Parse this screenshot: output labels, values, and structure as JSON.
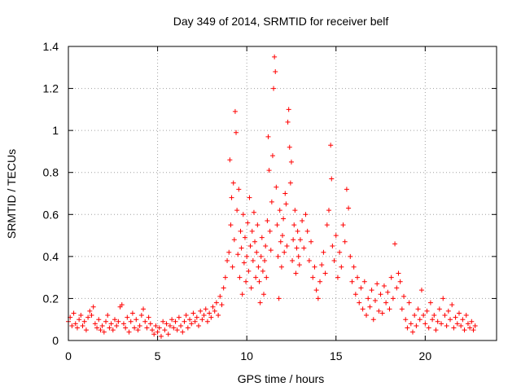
{
  "chart_data": {
    "type": "scatter",
    "title": "Day 349 of 2014, SRMTID for receiver belf",
    "xlabel": "GPS time / hours",
    "ylabel": "SRMTID / TECUs",
    "xlim": [
      0,
      24
    ],
    "ylim": [
      0,
      1.4
    ],
    "grid": true,
    "marker": "+",
    "color": "#ff0000",
    "xticks": [
      0,
      5,
      10,
      15,
      20
    ],
    "xtick_labels": [
      "0",
      "5",
      "10",
      "15",
      "20"
    ],
    "yticks": [
      0,
      0.2,
      0.4,
      0.6,
      0.8,
      1,
      1.2,
      1.4
    ],
    "ytick_labels": [
      "0",
      "0.2",
      "0.4",
      "0.6",
      "0.8",
      "1",
      "1.2",
      "1.4"
    ],
    "series": [
      {
        "name": "SRMTID",
        "points": [
          [
            0.0,
            0.09
          ],
          [
            0.1,
            0.11
          ],
          [
            0.2,
            0.07
          ],
          [
            0.3,
            0.13
          ],
          [
            0.4,
            0.08
          ],
          [
            0.5,
            0.06
          ],
          [
            0.6,
            0.1
          ],
          [
            0.7,
            0.12
          ],
          [
            0.8,
            0.07
          ],
          [
            0.9,
            0.09
          ],
          [
            1.0,
            0.05
          ],
          [
            1.1,
            0.11
          ],
          [
            1.2,
            0.14
          ],
          [
            1.3,
            0.12
          ],
          [
            1.4,
            0.16
          ],
          [
            1.5,
            0.08
          ],
          [
            1.6,
            0.06
          ],
          [
            1.7,
            0.1
          ],
          [
            1.8,
            0.05
          ],
          [
            1.9,
            0.07
          ],
          [
            2.0,
            0.04
          ],
          [
            2.1,
            0.09
          ],
          [
            2.2,
            0.12
          ],
          [
            2.3,
            0.06
          ],
          [
            2.4,
            0.08
          ],
          [
            2.5,
            0.05
          ],
          [
            2.6,
            0.1
          ],
          [
            2.7,
            0.07
          ],
          [
            2.8,
            0.09
          ],
          [
            2.9,
            0.16
          ],
          [
            3.0,
            0.17
          ],
          [
            3.1,
            0.08
          ],
          [
            3.2,
            0.06
          ],
          [
            3.3,
            0.11
          ],
          [
            3.4,
            0.04
          ],
          [
            3.5,
            0.09
          ],
          [
            3.6,
            0.13
          ],
          [
            3.7,
            0.06
          ],
          [
            3.8,
            0.1
          ],
          [
            3.9,
            0.05
          ],
          [
            4.0,
            0.07
          ],
          [
            4.1,
            0.12
          ],
          [
            4.2,
            0.15
          ],
          [
            4.3,
            0.09
          ],
          [
            4.4,
            0.06
          ],
          [
            4.5,
            0.11
          ],
          [
            4.6,
            0.08
          ],
          [
            4.7,
            0.05
          ],
          [
            4.8,
            0.03
          ],
          [
            4.9,
            0.07
          ],
          [
            5.0,
            0.04
          ],
          [
            5.1,
            0.06
          ],
          [
            5.2,
            0.02
          ],
          [
            5.3,
            0.09
          ],
          [
            5.4,
            0.05
          ],
          [
            5.5,
            0.08
          ],
          [
            5.6,
            0.03
          ],
          [
            5.7,
            0.07
          ],
          [
            5.8,
            0.1
          ],
          [
            5.9,
            0.06
          ],
          [
            6.0,
            0.09
          ],
          [
            6.1,
            0.05
          ],
          [
            6.2,
            0.11
          ],
          [
            6.3,
            0.07
          ],
          [
            6.4,
            0.04
          ],
          [
            6.5,
            0.09
          ],
          [
            6.6,
            0.12
          ],
          [
            6.7,
            0.06
          ],
          [
            6.8,
            0.1
          ],
          [
            6.9,
            0.08
          ],
          [
            7.0,
            0.13
          ],
          [
            7.1,
            0.09
          ],
          [
            7.2,
            0.11
          ],
          [
            7.3,
            0.07
          ],
          [
            7.4,
            0.14
          ],
          [
            7.5,
            0.1
          ],
          [
            7.6,
            0.12
          ],
          [
            7.7,
            0.15
          ],
          [
            7.8,
            0.09
          ],
          [
            7.9,
            0.13
          ],
          [
            8.0,
            0.11
          ],
          [
            8.1,
            0.16
          ],
          [
            8.2,
            0.14
          ],
          [
            8.3,
            0.18
          ],
          [
            8.4,
            0.12
          ],
          [
            8.5,
            0.21
          ],
          [
            8.6,
            0.17
          ],
          [
            8.7,
            0.25
          ],
          [
            8.8,
            0.3
          ],
          [
            8.9,
            0.38
          ],
          [
            9.0,
            0.42
          ],
          [
            9.05,
            0.86
          ],
          [
            9.1,
            0.55
          ],
          [
            9.15,
            0.68
          ],
          [
            9.2,
            0.35
          ],
          [
            9.25,
            0.75
          ],
          [
            9.3,
            0.48
          ],
          [
            9.35,
            1.09
          ],
          [
            9.4,
            0.99
          ],
          [
            9.45,
            0.62
          ],
          [
            9.5,
            0.41
          ],
          [
            9.55,
            0.72
          ],
          [
            9.6,
            0.3
          ],
          [
            9.65,
            0.52
          ],
          [
            9.7,
            0.44
          ],
          [
            9.75,
            0.22
          ],
          [
            9.8,
            0.6
          ],
          [
            9.85,
            0.37
          ],
          [
            9.9,
            0.49
          ],
          [
            9.95,
            0.28
          ],
          [
            10.0,
            0.4
          ],
          [
            10.05,
            0.56
          ],
          [
            10.1,
            0.33
          ],
          [
            10.15,
            0.68
          ],
          [
            10.2,
            0.45
          ],
          [
            10.25,
            0.25
          ],
          [
            10.3,
            0.52
          ],
          [
            10.35,
            0.38
          ],
          [
            10.4,
            0.61
          ],
          [
            10.45,
            0.47
          ],
          [
            10.5,
            0.3
          ],
          [
            10.55,
            0.42
          ],
          [
            10.6,
            0.55
          ],
          [
            10.65,
            0.35
          ],
          [
            10.7,
            0.28
          ],
          [
            10.75,
            0.18
          ],
          [
            10.8,
            0.4
          ],
          [
            10.85,
            0.49
          ],
          [
            10.9,
            0.33
          ],
          [
            10.95,
            0.22
          ],
          [
            11.0,
            0.38
          ],
          [
            11.05,
            0.45
          ],
          [
            11.1,
            0.3
          ],
          [
            11.15,
            0.57
          ],
          [
            11.2,
            0.97
          ],
          [
            11.25,
            0.81
          ],
          [
            11.3,
            0.52
          ],
          [
            11.35,
            0.43
          ],
          [
            11.4,
            0.66
          ],
          [
            11.45,
            0.88
          ],
          [
            11.5,
            1.2
          ],
          [
            11.55,
            1.35
          ],
          [
            11.6,
            1.28
          ],
          [
            11.65,
            0.73
          ],
          [
            11.7,
            0.55
          ],
          [
            11.75,
            0.4
          ],
          [
            11.8,
            0.2
          ],
          [
            11.85,
            0.62
          ],
          [
            11.9,
            0.47
          ],
          [
            11.95,
            0.35
          ],
          [
            12.0,
            0.5
          ],
          [
            12.05,
            0.58
          ],
          [
            12.1,
            0.42
          ],
          [
            12.15,
            0.7
          ],
          [
            12.2,
            0.65
          ],
          [
            12.25,
            0.45
          ],
          [
            12.3,
            1.04
          ],
          [
            12.35,
            1.1
          ],
          [
            12.4,
            0.92
          ],
          [
            12.45,
            0.75
          ],
          [
            12.5,
            0.85
          ],
          [
            12.55,
            0.38
          ],
          [
            12.6,
            0.48
          ],
          [
            12.65,
            0.55
          ],
          [
            12.7,
            0.62
          ],
          [
            12.75,
            0.32
          ],
          [
            12.8,
            0.44
          ],
          [
            12.85,
            0.52
          ],
          [
            12.9,
            0.4
          ],
          [
            12.95,
            0.36
          ],
          [
            13.0,
            0.48
          ],
          [
            13.1,
            0.57
          ],
          [
            13.2,
            0.44
          ],
          [
            13.3,
            0.6
          ],
          [
            13.4,
            0.52
          ],
          [
            13.5,
            0.38
          ],
          [
            13.6,
            0.47
          ],
          [
            13.7,
            0.3
          ],
          [
            13.8,
            0.35
          ],
          [
            13.9,
            0.24
          ],
          [
            14.0,
            0.2
          ],
          [
            14.1,
            0.28
          ],
          [
            14.2,
            0.36
          ],
          [
            14.3,
            0.42
          ],
          [
            14.4,
            0.32
          ],
          [
            14.5,
            0.55
          ],
          [
            14.6,
            0.62
          ],
          [
            14.7,
            0.93
          ],
          [
            14.75,
            0.77
          ],
          [
            14.8,
            0.45
          ],
          [
            14.9,
            0.38
          ],
          [
            15.0,
            0.5
          ],
          [
            15.1,
            0.3
          ],
          [
            15.2,
            0.42
          ],
          [
            15.3,
            0.35
          ],
          [
            15.4,
            0.55
          ],
          [
            15.5,
            0.47
          ],
          [
            15.6,
            0.72
          ],
          [
            15.7,
            0.63
          ],
          [
            15.8,
            0.4
          ],
          [
            15.9,
            0.28
          ],
          [
            16.0,
            0.35
          ],
          [
            16.1,
            0.22
          ],
          [
            16.2,
            0.3
          ],
          [
            16.3,
            0.18
          ],
          [
            16.4,
            0.25
          ],
          [
            16.5,
            0.15
          ],
          [
            16.6,
            0.28
          ],
          [
            16.7,
            0.12
          ],
          [
            16.8,
            0.2
          ],
          [
            16.9,
            0.16
          ],
          [
            17.0,
            0.24
          ],
          [
            17.1,
            0.1
          ],
          [
            17.2,
            0.19
          ],
          [
            17.3,
            0.27
          ],
          [
            17.4,
            0.14
          ],
          [
            17.5,
            0.22
          ],
          [
            17.6,
            0.13
          ],
          [
            17.7,
            0.26
          ],
          [
            17.8,
            0.18
          ],
          [
            17.9,
            0.23
          ],
          [
            18.0,
            0.15
          ],
          [
            18.1,
            0.3
          ],
          [
            18.2,
            0.2
          ],
          [
            18.3,
            0.46
          ],
          [
            18.4,
            0.25
          ],
          [
            18.5,
            0.32
          ],
          [
            18.6,
            0.28
          ],
          [
            18.7,
            0.15
          ],
          [
            18.8,
            0.21
          ],
          [
            18.9,
            0.1
          ],
          [
            19.0,
            0.06
          ],
          [
            19.1,
            0.18
          ],
          [
            19.2,
            0.08
          ],
          [
            19.3,
            0.04
          ],
          [
            19.4,
            0.12
          ],
          [
            19.5,
            0.07
          ],
          [
            19.6,
            0.15
          ],
          [
            19.7,
            0.1
          ],
          [
            19.8,
            0.24
          ],
          [
            19.9,
            0.12
          ],
          [
            20.0,
            0.08
          ],
          [
            20.1,
            0.14
          ],
          [
            20.2,
            0.06
          ],
          [
            20.3,
            0.18
          ],
          [
            20.4,
            0.1
          ],
          [
            20.5,
            0.12
          ],
          [
            20.6,
            0.05
          ],
          [
            20.7,
            0.09
          ],
          [
            20.8,
            0.15
          ],
          [
            20.9,
            0.08
          ],
          [
            21.0,
            0.2
          ],
          [
            21.1,
            0.12
          ],
          [
            21.2,
            0.07
          ],
          [
            21.3,
            0.14
          ],
          [
            21.4,
            0.1
          ],
          [
            21.5,
            0.17
          ],
          [
            21.6,
            0.06
          ],
          [
            21.7,
            0.11
          ],
          [
            21.8,
            0.08
          ],
          [
            21.9,
            0.13
          ],
          [
            22.0,
            0.07
          ],
          [
            22.1,
            0.1
          ],
          [
            22.2,
            0.05
          ],
          [
            22.3,
            0.12
          ],
          [
            22.4,
            0.08
          ],
          [
            22.5,
            0.06
          ],
          [
            22.6,
            0.09
          ],
          [
            22.7,
            0.05
          ],
          [
            22.8,
            0.07
          ]
        ]
      }
    ]
  }
}
